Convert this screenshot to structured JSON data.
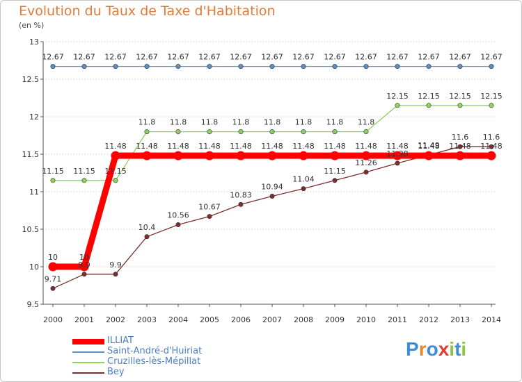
{
  "title": "Evolution du Taux de Taxe d'Habitation",
  "unit_label": "(en %)",
  "logo": {
    "text": "Proxiti",
    "letters": [
      "P",
      "r",
      "o",
      "x",
      "i",
      "t",
      "i"
    ],
    "letter_colors": [
      "#3a8dd6",
      "#e38a2c",
      "#3a8dd6",
      "#e13b2f",
      "#8cc63f",
      "#3a8dd6",
      "#8cc63f"
    ]
  },
  "chart_data": {
    "type": "line",
    "title": "Evolution du Taux de Taxe d'Habitation",
    "ylabel": "(en %)",
    "xlabel": "",
    "ylim": [
      9.5,
      13
    ],
    "yticks": [
      9.5,
      10,
      10.5,
      11,
      11.5,
      12,
      12.5,
      13
    ],
    "categories": [
      "2000",
      "2001",
      "2002",
      "2003",
      "2004",
      "2005",
      "2006",
      "2007",
      "2008",
      "2009",
      "2010",
      "2011",
      "2012",
      "2013",
      "2014"
    ],
    "series": [
      {
        "name": "ILLIAT",
        "color": "#ff0000",
        "values": [
          10,
          10,
          11.48,
          11.48,
          11.48,
          11.48,
          11.48,
          11.48,
          11.48,
          11.48,
          11.48,
          11.48,
          11.48,
          11.48,
          11.48
        ],
        "labels": [
          "10",
          "10",
          "11.48",
          "11.48",
          "11.48",
          "11.48",
          "11.48",
          "11.48",
          "11.48",
          "11.48",
          "11.48",
          "11.48",
          "11.48",
          "11.48",
          "11.48"
        ]
      },
      {
        "name": "Saint-André-d'Huiriat",
        "color": "#5b8ec4",
        "values": [
          12.67,
          12.67,
          12.67,
          12.67,
          12.67,
          12.67,
          12.67,
          12.67,
          12.67,
          12.67,
          12.67,
          12.67,
          12.67,
          12.67,
          12.67
        ],
        "labels": [
          "12.67",
          "12.67",
          "12.67",
          "12.67",
          "12.67",
          "12.67",
          "12.67",
          "12.67",
          "12.67",
          "12.67",
          "12.67",
          "12.67",
          "12.67",
          "12.67",
          "12.67"
        ]
      },
      {
        "name": "Cruzilles-lès-Mépillat",
        "color": "#8ed35a",
        "values": [
          11.15,
          11.15,
          11.15,
          11.8,
          11.8,
          11.8,
          11.8,
          11.8,
          11.8,
          11.8,
          11.8,
          12.15,
          12.15,
          12.15,
          12.15
        ],
        "labels": [
          "11.15",
          "11.15",
          "11.15",
          "11.8",
          "11.8",
          "11.8",
          "11.8",
          "11.8",
          "11.8",
          "11.8",
          "11.8",
          "12.15",
          "12.15",
          "12.15",
          "12.15"
        ]
      },
      {
        "name": "Bey",
        "color": "#7a2e2e",
        "values": [
          9.71,
          9.9,
          9.9,
          10.4,
          10.56,
          10.67,
          10.83,
          10.94,
          11.04,
          11.15,
          11.26,
          11.38,
          11.49,
          11.6,
          11.6
        ],
        "labels": [
          "9.71",
          "9.9",
          "9.9",
          "10.4",
          "10.56",
          "10.67",
          "10.83",
          "10.94",
          "11.04",
          "11.15",
          "11.26",
          "11.38",
          "11.49",
          "11.6",
          "11.6"
        ]
      }
    ]
  }
}
